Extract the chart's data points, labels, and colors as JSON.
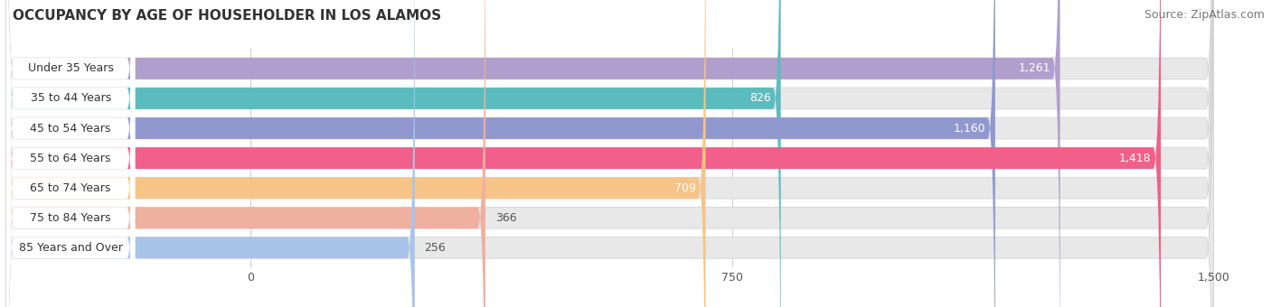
{
  "title": "OCCUPANCY BY AGE OF HOUSEHOLDER IN LOS ALAMOS",
  "source": "Source: ZipAtlas.com",
  "categories": [
    "Under 35 Years",
    "35 to 44 Years",
    "45 to 54 Years",
    "55 to 64 Years",
    "65 to 74 Years",
    "75 to 84 Years",
    "85 Years and Over"
  ],
  "values": [
    1261,
    826,
    1160,
    1418,
    709,
    366,
    256
  ],
  "bar_colors": [
    "#b09fcc",
    "#5bbcbe",
    "#9198d0",
    "#f0608a",
    "#f7c488",
    "#f0b0a0",
    "#a8c4e8"
  ],
  "bar_bg_color": "#e8e8e8",
  "data_min": 0,
  "data_max": 1500,
  "xticks": [
    0,
    750,
    1500
  ],
  "title_fontsize": 11,
  "source_fontsize": 9,
  "label_fontsize": 9,
  "value_fontsize": 9,
  "background_color": "#ffffff",
  "bar_bg_border_color": "#d0d0d0",
  "value_inside_colors": [
    "#ffffff",
    "#ffffff",
    "#ffffff",
    "#ffffff",
    "#555555",
    "#555555",
    "#555555"
  ],
  "value_outside_color": "#555555",
  "value_inside_threshold": 500
}
